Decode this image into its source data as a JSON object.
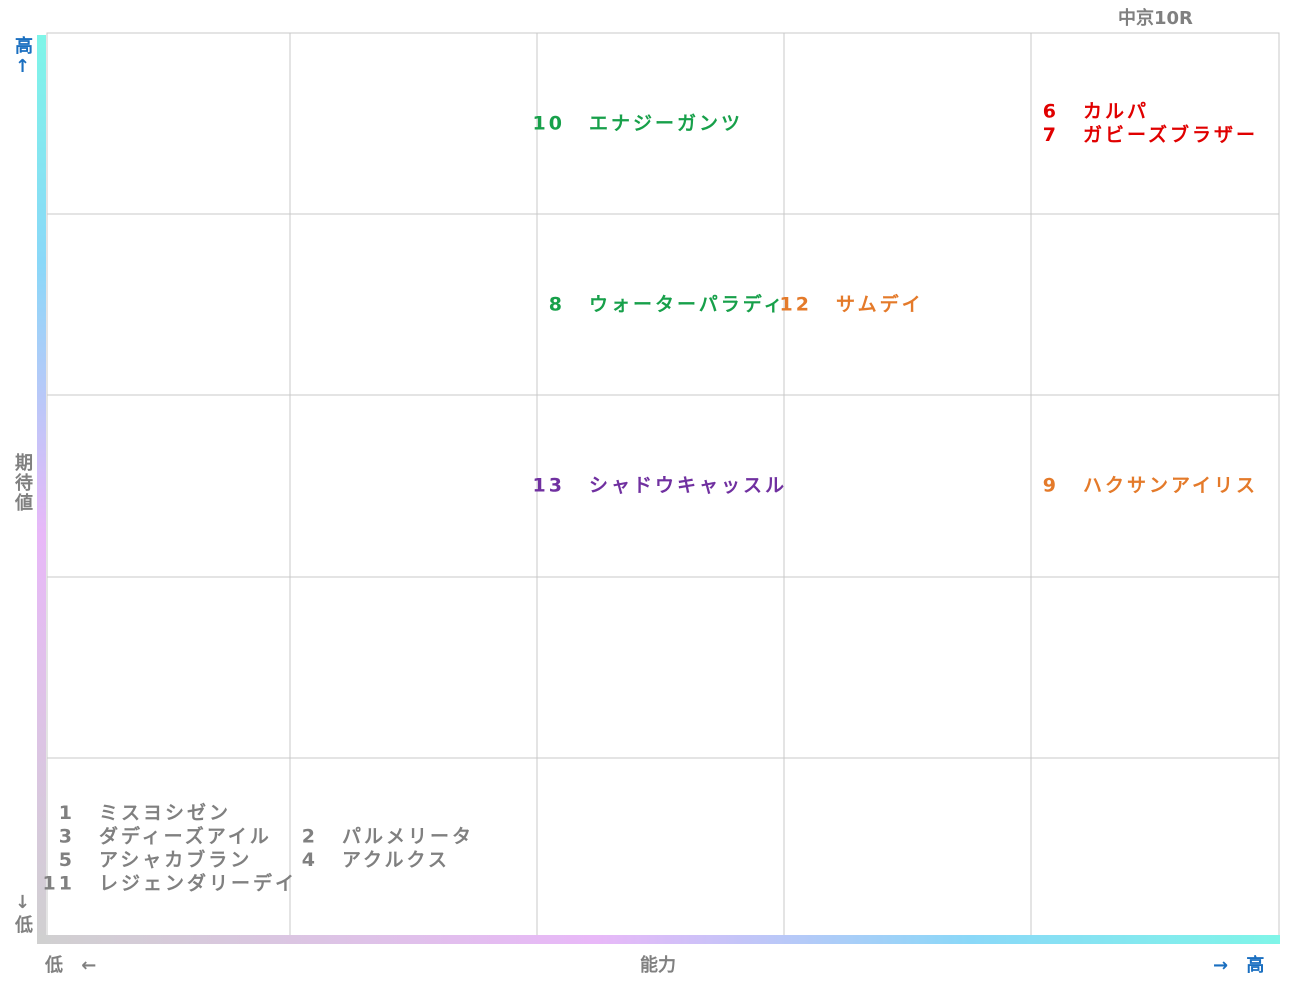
{
  "title": "中京10R",
  "y_axis": {
    "high": "高↑",
    "label": "期待値",
    "low": "↓低"
  },
  "x_axis": {
    "low": "低 ←",
    "label": "能力",
    "high": "→ 高"
  },
  "grid": [
    [
      [],
      [],
      [
        {
          "number": "10",
          "name": "エナジーガンツ",
          "color": "#17a04a"
        }
      ],
      [],
      [
        {
          "number": "6",
          "name": "カルパ",
          "color": "#e00000"
        },
        {
          "number": "7",
          "name": "ガビーズブラザー",
          "color": "#e00000"
        }
      ]
    ],
    [
      [],
      [],
      [
        {
          "number": "8",
          "name": "ウォーターパラディ",
          "color": "#17a04a"
        }
      ],
      [
        {
          "number": "12",
          "name": "サムデイ",
          "color": "#e47a2a"
        }
      ],
      []
    ],
    [
      [],
      [],
      [
        {
          "number": "13",
          "name": "シャドウキャッスル",
          "color": "#7030a0"
        }
      ],
      [],
      [
        {
          "number": "9",
          "name": "ハクサンアイリス",
          "color": "#e47a2a"
        }
      ]
    ],
    [
      [],
      [],
      [],
      [],
      []
    ],
    [
      [
        {
          "number": "1",
          "name": "ミスヨシゼン",
          "color": "#808080"
        },
        {
          "number": "3",
          "name": "ダディーズアイル",
          "color": "#808080"
        },
        {
          "number": "5",
          "name": "アシャカブラン",
          "color": "#808080"
        },
        {
          "number": "11",
          "name": "レジェンダリーデイ",
          "color": "#808080"
        }
      ],
      [
        {
          "number": "2",
          "name": "パルメリータ",
          "color": "#808080"
        },
        {
          "number": "4",
          "name": "アクルクス",
          "color": "#808080"
        }
      ],
      [],
      [],
      []
    ]
  ]
}
